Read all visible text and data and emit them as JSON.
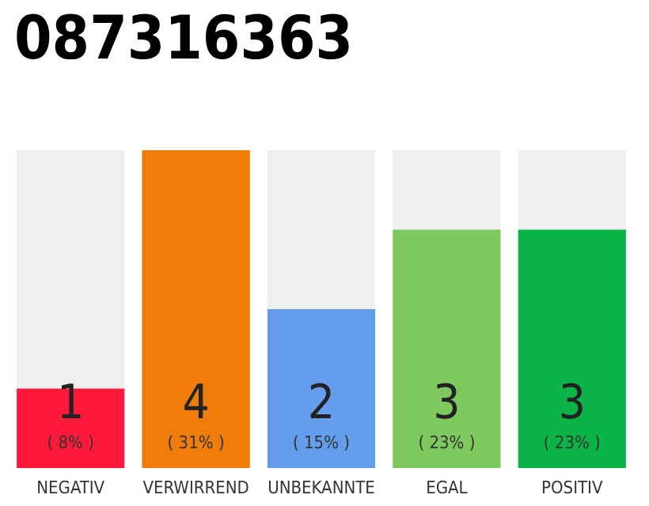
{
  "chart_data": {
    "type": "bar",
    "title": "087316363",
    "categories": [
      "NEGATIV",
      "VERWIRREND",
      "UNBEKANNTE",
      "EGAL",
      "POSITIV"
    ],
    "values": [
      1,
      4,
      2,
      3,
      3
    ],
    "colors": [
      "#ff1a3c",
      "#f07d0a",
      "#659ded",
      "#7dc95e",
      "#0bb446"
    ],
    "value_labels": [
      "1\n( 8% )",
      "4\n( 31% )",
      "2\n( 15% )",
      "3\n( 23% )",
      "3\n( 23% )"
    ],
    "ylim": [
      0,
      4
    ],
    "tick_labels": "x"
  }
}
